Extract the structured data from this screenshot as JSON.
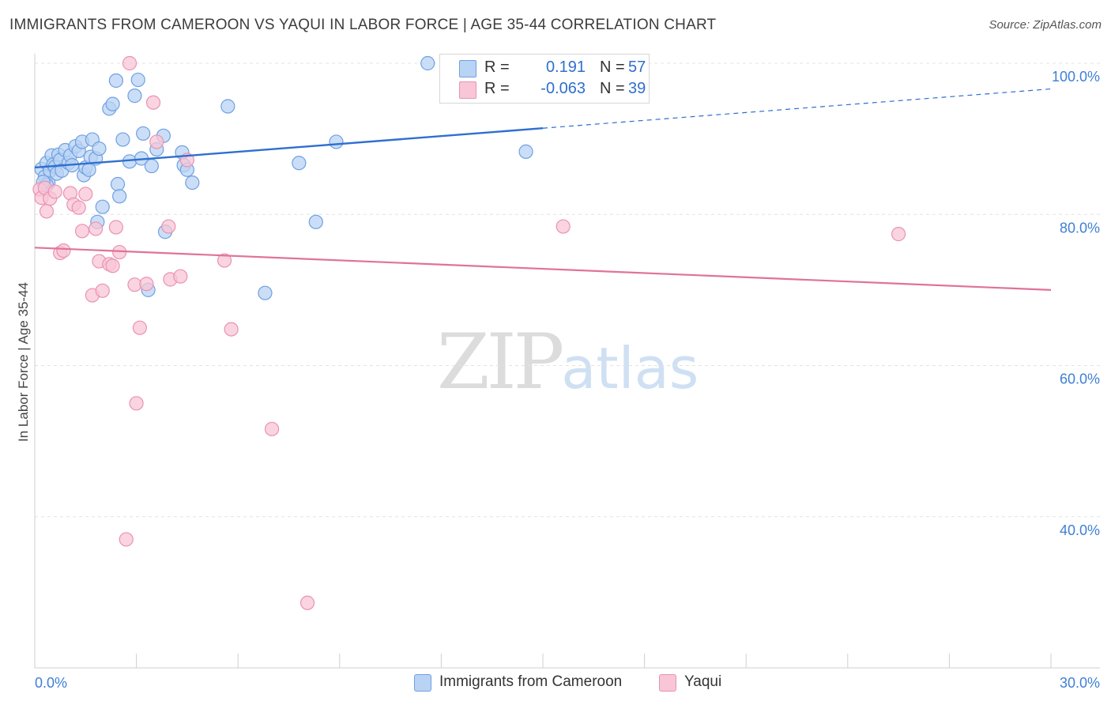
{
  "title": "IMMIGRANTS FROM CAMEROON VS YAQUI IN LABOR FORCE | AGE 35-44 CORRELATION CHART",
  "source": "Source: ZipAtlas.com",
  "watermark": {
    "zip": "ZIP",
    "atlas": "atlas"
  },
  "chart_data": {
    "type": "scatter",
    "xlabel": "",
    "ylabel": "In Labor Force | Age 35-44",
    "xlim": [
      0,
      30
    ],
    "ylim": [
      20,
      100
    ],
    "x_tick_labels": [
      {
        "value": 0,
        "label": "0.0%"
      },
      {
        "value": 30,
        "label": "30.0%"
      }
    ],
    "y_tick_labels": [
      {
        "value": 100,
        "label": "100.0%"
      },
      {
        "value": 80,
        "label": "80.0%"
      },
      {
        "value": 60,
        "label": "60.0%"
      },
      {
        "value": 40,
        "label": "40.0%"
      }
    ],
    "gridlines": [
      100,
      80,
      60,
      40
    ],
    "legend_stats": [
      {
        "series": "Immigrants from Cameroon",
        "r_label": "R =",
        "r": "0.191",
        "n_label": "N =",
        "n": "57",
        "color": "#6fa0e0",
        "fill": "#b9d3f4"
      },
      {
        "series": "Yaqui",
        "r_label": "R =",
        "r": "-0.063",
        "n_label": "N =",
        "n": "39",
        "color": "#e993b0",
        "fill": "#f8c6d6"
      }
    ],
    "series": [
      {
        "name": "Immigrants from Cameroon",
        "color": "#6fa0e0",
        "fill": "#b9d3f4",
        "trend": {
          "x0": 0,
          "y0": 86.2,
          "x1": 15.0,
          "y1": 91.4,
          "dash_to_x": 30,
          "dash_to_y": 96.6,
          "color": "#2f6fcf"
        },
        "points": [
          [
            0.2,
            86.0
          ],
          [
            0.3,
            85.0
          ],
          [
            0.35,
            86.8
          ],
          [
            0.4,
            84.2
          ],
          [
            0.45,
            85.8
          ],
          [
            0.5,
            87.8
          ],
          [
            0.55,
            86.6
          ],
          [
            0.6,
            86.3
          ],
          [
            0.65,
            85.4
          ],
          [
            0.7,
            87.9
          ],
          [
            0.75,
            87.2
          ],
          [
            0.8,
            85.8
          ],
          [
            0.9,
            88.5
          ],
          [
            1.0,
            86.8
          ],
          [
            1.05,
            87.8
          ],
          [
            1.1,
            86.5
          ],
          [
            1.2,
            89.0
          ],
          [
            1.3,
            88.4
          ],
          [
            1.4,
            89.6
          ],
          [
            1.45,
            85.2
          ],
          [
            1.5,
            86.2
          ],
          [
            1.6,
            85.9
          ],
          [
            1.65,
            87.6
          ],
          [
            1.7,
            89.9
          ],
          [
            1.8,
            87.4
          ],
          [
            1.85,
            79.0
          ],
          [
            1.9,
            88.7
          ],
          [
            2.0,
            81.0
          ],
          [
            2.2,
            94.0
          ],
          [
            2.3,
            94.6
          ],
          [
            2.4,
            97.7
          ],
          [
            2.45,
            84.0
          ],
          [
            2.5,
            82.4
          ],
          [
            2.6,
            89.9
          ],
          [
            2.8,
            87.0
          ],
          [
            2.95,
            95.7
          ],
          [
            3.05,
            97.8
          ],
          [
            3.15,
            87.4
          ],
          [
            3.2,
            90.7
          ],
          [
            3.35,
            70.0
          ],
          [
            3.45,
            86.4
          ],
          [
            3.6,
            88.6
          ],
          [
            3.8,
            90.4
          ],
          [
            3.85,
            77.7
          ],
          [
            4.35,
            88.2
          ],
          [
            4.4,
            86.5
          ],
          [
            4.5,
            85.9
          ],
          [
            4.65,
            84.2
          ],
          [
            5.7,
            94.3
          ],
          [
            6.8,
            69.6
          ],
          [
            7.8,
            86.8
          ],
          [
            8.3,
            79.0
          ],
          [
            8.9,
            89.6
          ],
          [
            11.6,
            100.0
          ],
          [
            14.5,
            88.3
          ],
          [
            0.35,
            83.9
          ],
          [
            0.25,
            84.3
          ]
        ]
      },
      {
        "name": "Yaqui",
        "color": "#e993b0",
        "fill": "#f8c6d6",
        "trend": {
          "x0": 0,
          "y0": 75.6,
          "x1": 30,
          "y1": 70.0,
          "color": "#e0729b"
        },
        "points": [
          [
            0.15,
            83.3
          ],
          [
            0.2,
            82.2
          ],
          [
            0.3,
            83.5
          ],
          [
            0.35,
            80.4
          ],
          [
            0.45,
            82.1
          ],
          [
            0.6,
            83.0
          ],
          [
            0.75,
            74.9
          ],
          [
            0.85,
            75.2
          ],
          [
            1.05,
            82.8
          ],
          [
            1.15,
            81.3
          ],
          [
            1.3,
            80.9
          ],
          [
            1.4,
            77.8
          ],
          [
            1.5,
            82.7
          ],
          [
            1.7,
            69.3
          ],
          [
            1.8,
            78.1
          ],
          [
            1.9,
            73.8
          ],
          [
            2.0,
            69.9
          ],
          [
            2.2,
            73.4
          ],
          [
            2.3,
            73.2
          ],
          [
            2.4,
            78.3
          ],
          [
            2.5,
            75.0
          ],
          [
            2.7,
            37.0
          ],
          [
            2.8,
            100.0
          ],
          [
            2.95,
            70.7
          ],
          [
            3.0,
            55.0
          ],
          [
            3.1,
            65.0
          ],
          [
            3.3,
            70.8
          ],
          [
            3.5,
            94.8
          ],
          [
            3.6,
            89.6
          ],
          [
            3.95,
            78.4
          ],
          [
            4.0,
            71.4
          ],
          [
            4.3,
            71.8
          ],
          [
            4.5,
            87.2
          ],
          [
            5.6,
            73.9
          ],
          [
            5.8,
            64.8
          ],
          [
            7.0,
            51.6
          ],
          [
            8.05,
            28.6
          ],
          [
            15.6,
            78.4
          ],
          [
            25.5,
            77.4
          ]
        ]
      }
    ]
  }
}
